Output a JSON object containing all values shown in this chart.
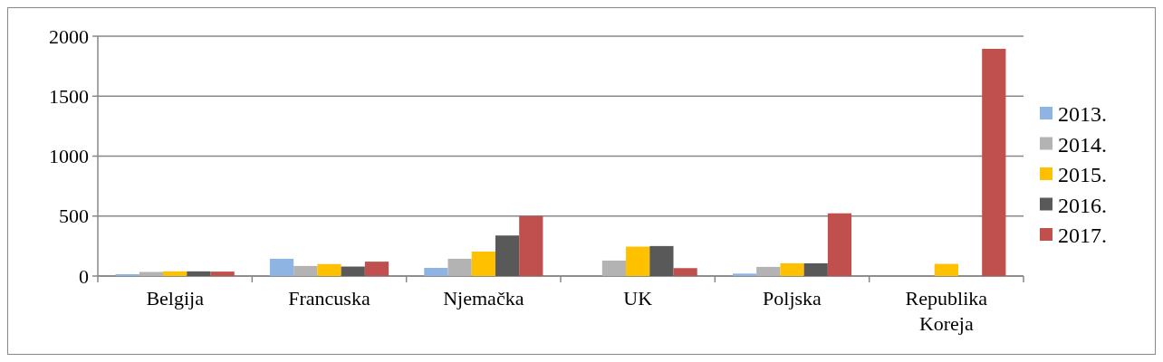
{
  "chart_data": {
    "type": "bar",
    "categories": [
      "Belgija",
      "Francuska",
      "Njemačka",
      "UK",
      "Poljska",
      "Republika Koreja"
    ],
    "series": [
      {
        "name": "2013.",
        "color": "#8eb4e3",
        "values": [
          15,
          144,
          68,
          null,
          20,
          null
        ]
      },
      {
        "name": "2014.",
        "color": "#b3b3b3",
        "values": [
          34,
          84,
          144,
          129,
          76,
          null
        ]
      },
      {
        "name": "2015.",
        "color": "#ffc000",
        "values": [
          39,
          100,
          204,
          245,
          106,
          101
        ]
      },
      {
        "name": "2016.",
        "color": "#595959",
        "values": [
          39,
          79,
          338,
          250,
          106,
          null
        ]
      },
      {
        "name": "2017.",
        "color": "#c0504d",
        "values": [
          37,
          120,
          500,
          66,
          523,
          1895
        ]
      }
    ],
    "ylim": [
      0,
      2000
    ],
    "yticks": [
      0,
      500,
      1000,
      1500,
      2000
    ],
    "grid": "y",
    "legend": "right"
  }
}
